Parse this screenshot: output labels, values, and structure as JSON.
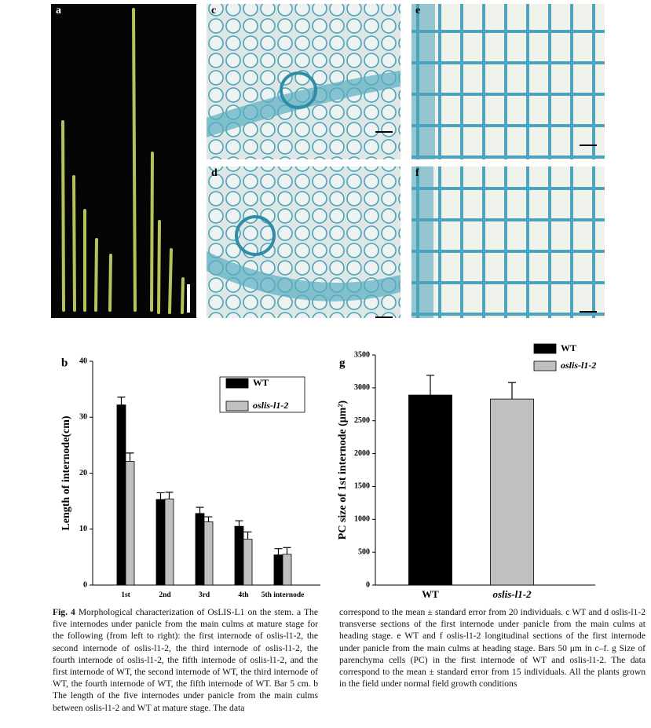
{
  "panels": {
    "a": "a",
    "c": "c",
    "d": "d",
    "e": "e",
    "f": "f"
  },
  "chart_data": [
    {
      "type": "bar",
      "panel_label": "b",
      "ylabel": "Length of internode(cm)",
      "categories": [
        "1st",
        "2nd",
        "3rd",
        "4th",
        "5th internode"
      ],
      "series": [
        {
          "name": "WT",
          "color": "#000000",
          "values": [
            32.2,
            15.3,
            12.8,
            10.5,
            5.4
          ],
          "errors": [
            1.4,
            1.2,
            1.1,
            1.0,
            1.1
          ]
        },
        {
          "name": "oslis-l1-2",
          "color": "#c0c0c0",
          "values": [
            22.1,
            15.4,
            11.3,
            8.2,
            5.5
          ],
          "errors": [
            1.5,
            1.2,
            0.9,
            1.3,
            1.2
          ]
        }
      ],
      "ylim": [
        0,
        40
      ],
      "yticks": [
        0,
        10,
        20,
        30,
        40
      ],
      "legend": "upper right"
    },
    {
      "type": "bar",
      "panel_label": "g",
      "ylabel": "PC size of 1st internode (μm²)",
      "categories": [
        "WT",
        "oslis-l1-2"
      ],
      "series": [
        {
          "name": "WT",
          "color": "#000000",
          "values": [
            2890,
            null
          ],
          "errors": [
            300,
            null
          ]
        },
        {
          "name": "oslis-l1-2",
          "color": "#c0c0c0",
          "values": [
            null,
            2830
          ],
          "errors": [
            null,
            250
          ]
        }
      ],
      "ylim": [
        0,
        3500
      ],
      "yticks": [
        0,
        500,
        1000,
        1500,
        2000,
        2500,
        3000,
        3500
      ],
      "legend": "upper left"
    }
  ],
  "caption": {
    "label": "Fig. 4",
    "left": "Morphological characterization of OsLIS-L1 on the stem. a The five internodes under panicle from the main culms at mature stage for the following (from left to right): the first internode of oslis-l1-2, the second internode of oslis-l1-2, the third internode of oslis-l1-2, the fourth internode of oslis-l1-2, the fifth internode of oslis-l1-2, and the first internode of WT, the second internode of WT, the third internode of WT, the fourth internode of WT, the fifth internode of WT. Bar 5 cm. b The length of the five internodes under panicle from the main culms between oslis-l1-2 and WT at mature stage. The data",
    "right": "correspond to the mean ± standard error from 20 individuals. c WT and d oslis-l1-2 transverse sections of the first internode under panicle from the main culms at heading stage. e WT and f oslis-l1-2 longitudinal sections of the first internode under panicle from the main culms at heading stage. Bars 50 μm in c–f. g Size of parenchyma cells (PC) in the first internode of WT and oslis-l1-2. The data correspond to the mean ± standard error from 15 individuals. All the plants grown in the field under normal field growth conditions"
  }
}
